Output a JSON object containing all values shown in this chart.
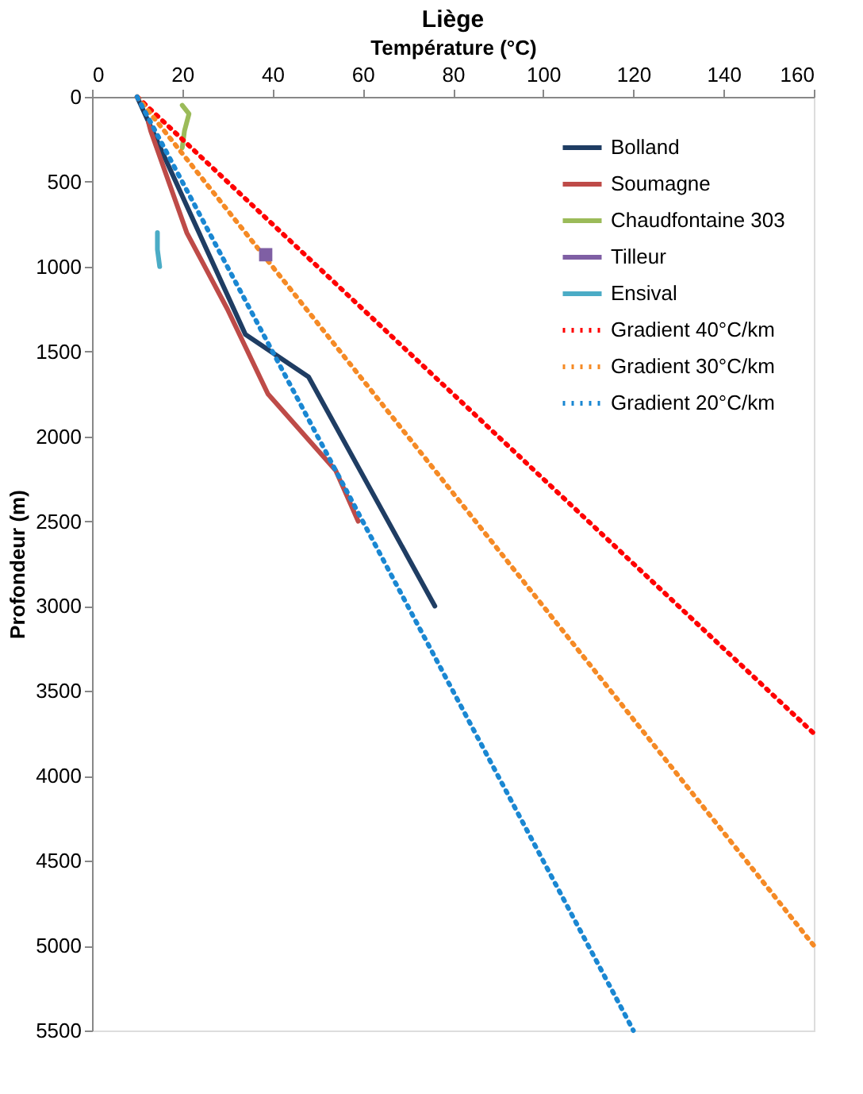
{
  "chart_data": {
    "type": "line",
    "title": "Liège",
    "xlabel": "Température (°C)",
    "ylabel": "Profondeur  (m)",
    "xlim": [
      0,
      160
    ],
    "xticks": [
      0,
      20,
      40,
      60,
      80,
      100,
      120,
      140,
      160
    ],
    "ylim": [
      5500,
      0
    ],
    "yticks": [
      0,
      500,
      1000,
      1500,
      2000,
      2500,
      3000,
      3500,
      4000,
      4500,
      5000,
      5500
    ],
    "grid": false,
    "legend": "top right",
    "series": [
      {
        "name": "Bolland",
        "color": "#1f3d63",
        "x": [
          10,
          34,
          48,
          76
        ],
        "values": [
          0,
          1400,
          1650,
          3000
        ]
      },
      {
        "name": "Soumagne",
        "color": "#be4b48",
        "x": [
          12.5,
          13,
          17,
          21,
          24,
          30,
          39,
          54,
          59
        ],
        "values": [
          150,
          200,
          500,
          800,
          950,
          1250,
          1750,
          2200,
          2500
        ]
      },
      {
        "name": "Chaudfontaine 303",
        "color": "#9bbb59",
        "x": [
          20,
          21.5,
          20.5,
          20
        ],
        "values": [
          50,
          100,
          200,
          300
        ]
      },
      {
        "name": "Tilleur",
        "color": "#7f5fa4",
        "marker": "square",
        "x": [
          38.5
        ],
        "values": [
          930
        ]
      },
      {
        "name": "Ensival",
        "color": "#4bacc6",
        "x": [
          14.5,
          14.5,
          15
        ],
        "values": [
          800,
          900,
          1000
        ]
      },
      {
        "name": "Gradient 40°C/km",
        "color": "#ff0000",
        "line_style": "dotted",
        "x": [
          10,
          160
        ],
        "values": [
          0,
          3750
        ]
      },
      {
        "name": "Gradient 30°C/km",
        "color": "#f58a25",
        "line_style": "dotted",
        "x": [
          10,
          160
        ],
        "values": [
          0,
          5000
        ]
      },
      {
        "name": "Gradient 20°C/km",
        "color": "#1a87d2",
        "line_style": "dotted",
        "x": [
          10,
          120
        ],
        "values": [
          0,
          5500
        ]
      }
    ]
  }
}
